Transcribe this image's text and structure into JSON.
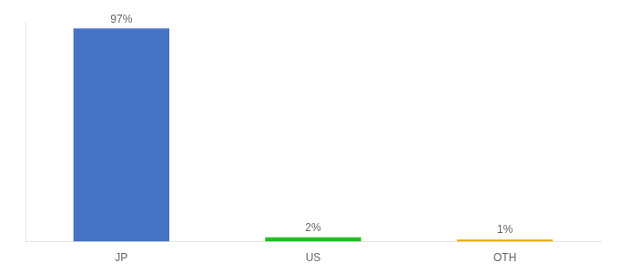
{
  "chart_data": {
    "type": "bar",
    "categories": [
      "JP",
      "US",
      "OTH"
    ],
    "values": [
      97,
      2,
      1
    ],
    "value_labels": [
      "97%",
      "2%",
      "1%"
    ],
    "colors": [
      "#4472c4",
      "#21c021",
      "#f0a800"
    ],
    "ylim": [
      0,
      100
    ],
    "data_labels": true,
    "tick_labels": "x",
    "grid": false
  }
}
